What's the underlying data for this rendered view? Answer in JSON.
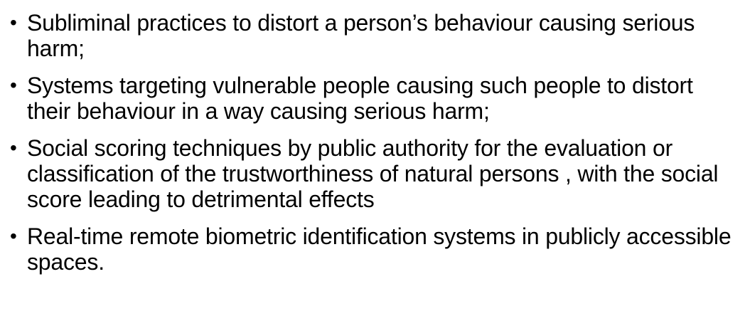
{
  "slide": {
    "bullets": [
      "Subliminal practices to distort a person’s behaviour causing serious harm;",
      "Systems targeting vulnerable people causing such people to distort their behaviour in a way causing serious harm;",
      "Social scoring techniques by public authority for  the evaluation or classification of the trustworthiness of natural persons , with the social score leading to detrimental effects",
      "Real-time remote biometric identification systems in publicly accessible spaces."
    ],
    "bullet_glyph": "•"
  }
}
